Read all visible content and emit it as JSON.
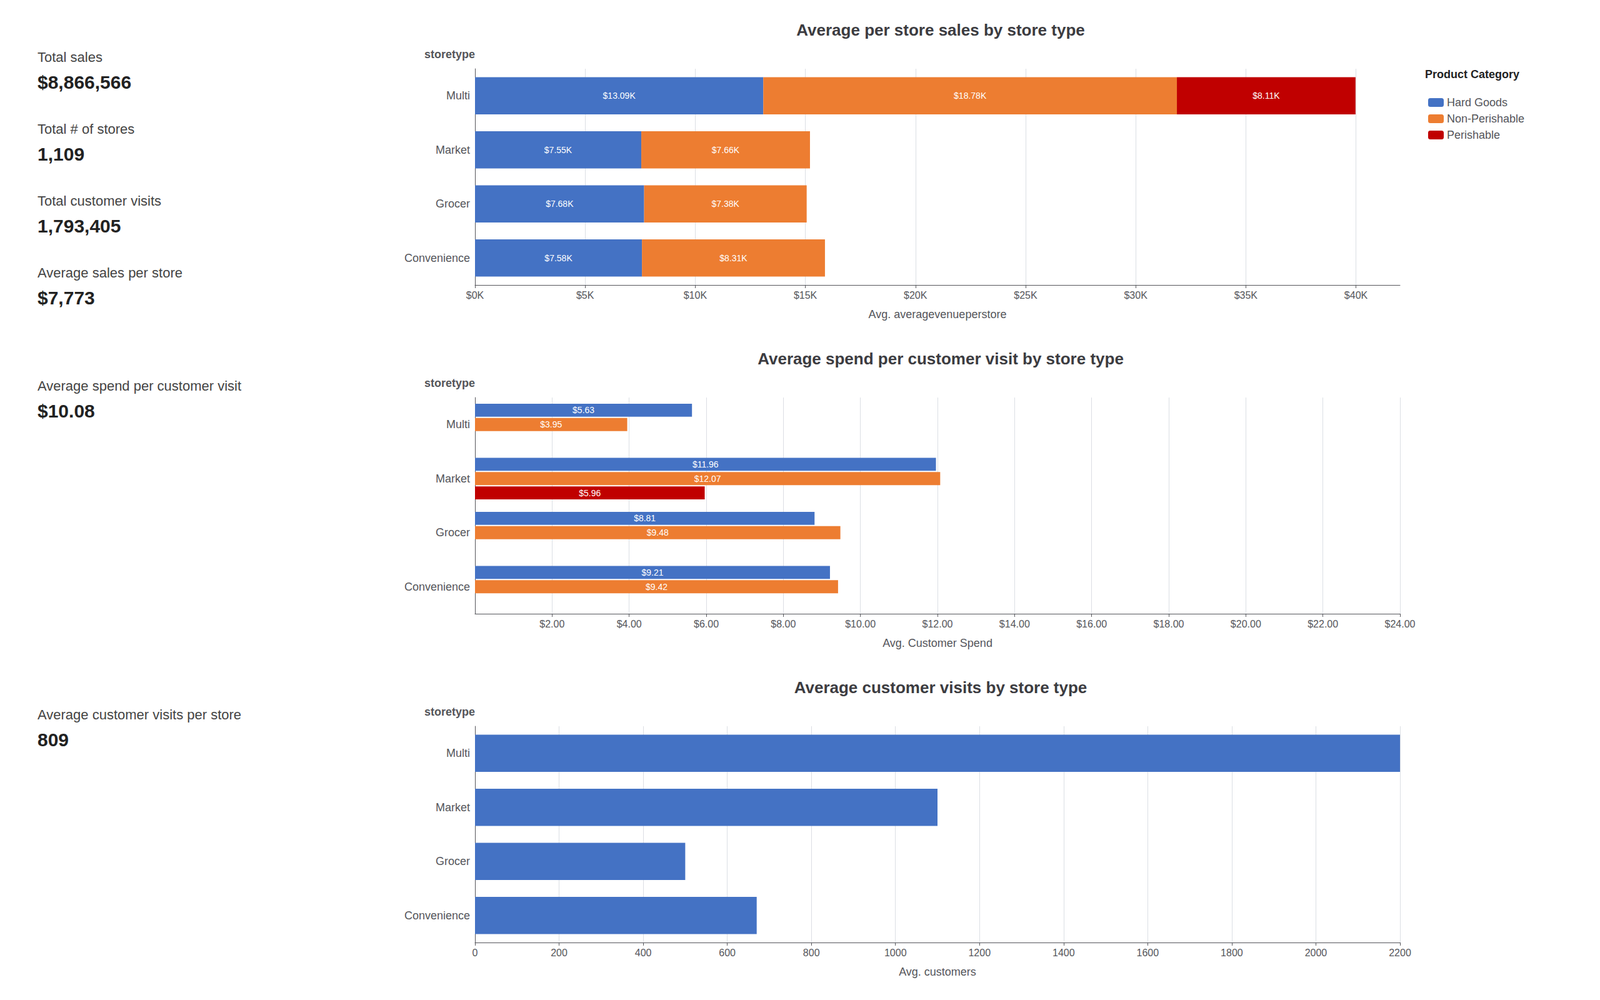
{
  "chart_data": [
    {
      "type": "bar",
      "orientation": "horizontal",
      "stacked": true,
      "title": "Average per store sales by store type",
      "xlabel": "Avg. averagevenueperstore",
      "ylabel": "storetype",
      "categories": [
        "Convenience",
        "Grocer",
        "Market",
        "Multi"
      ],
      "series": [
        {
          "name": "Hard Goods",
          "color": "#4472c4",
          "values": [
            7580,
            7680,
            7550,
            13090
          ],
          "value_labels": [
            "$7.58K",
            "$7.68K",
            "$7.55K",
            "$13.09K"
          ]
        },
        {
          "name": "Non-Perishable",
          "color": "#ed7d31",
          "values": [
            8310,
            7380,
            7660,
            18780
          ],
          "value_labels": [
            "$8.31K",
            "$7.38K",
            "$7.66K",
            "$18.78K"
          ]
        },
        {
          "name": "Perishable",
          "color": "#c00000",
          "values": [
            0,
            0,
            0,
            8110
          ],
          "value_labels": [
            null,
            null,
            null,
            "$8.11K"
          ]
        }
      ],
      "xlim": [
        0,
        42000
      ],
      "xticks": [
        {
          "value": 0,
          "label": "$0K"
        },
        {
          "value": 5000,
          "label": "$5K"
        },
        {
          "value": 10000,
          "label": "$10K"
        },
        {
          "value": 15000,
          "label": "$15K"
        },
        {
          "value": 20000,
          "label": "$20K"
        },
        {
          "value": 25000,
          "label": "$25K"
        },
        {
          "value": 30000,
          "label": "$30K"
        },
        {
          "value": 35000,
          "label": "$35K"
        },
        {
          "value": 40000,
          "label": "$40K"
        }
      ],
      "grid": true,
      "data_labels": true,
      "legend": "upper right",
      "legend_title": "Product Category",
      "annotations": [
        "Total sales",
        "$8,866,566",
        "Total # of stores",
        "1,109",
        "Total customer visits",
        "1,793,405",
        "Average sales per store",
        "$7,773"
      ]
    },
    {
      "type": "bar",
      "orientation": "horizontal",
      "title": "Average spend per customer visit by store type",
      "xlabel": "Avg. Customer Spend",
      "ylabel": "storetype",
      "categories": [
        "Convenience",
        "Grocer",
        "Market",
        "Multi"
      ],
      "series": [
        {
          "name": "Hard Goods",
          "color": "#4472c4",
          "values": [
            9.21,
            8.81,
            11.96,
            5.63
          ],
          "value_labels": [
            "$9.21",
            "$8.81",
            "$11.96",
            "$5.63"
          ]
        },
        {
          "name": "Non-Perishable",
          "color": "#ed7d31",
          "values": [
            9.42,
            9.48,
            12.07,
            3.95
          ],
          "value_labels": [
            "$9.42",
            "$9.48",
            "$12.07",
            "$3.95"
          ]
        },
        {
          "name": "Perishable",
          "color": "#c00000",
          "values": [
            0,
            0,
            5.96,
            0
          ],
          "value_labels": [
            null,
            null,
            "$5.96",
            null
          ]
        }
      ],
      "xlim": [
        0,
        24
      ],
      "xticks": [
        {
          "value": 2,
          "label": "$2.00"
        },
        {
          "value": 4,
          "label": "$4.00"
        },
        {
          "value": 6,
          "label": "$6.00"
        },
        {
          "value": 8,
          "label": "$8.00"
        },
        {
          "value": 10,
          "label": "$10.00"
        },
        {
          "value": 12,
          "label": "$12.00"
        },
        {
          "value": 14,
          "label": "$14.00"
        },
        {
          "value": 16,
          "label": "$16.00"
        },
        {
          "value": 18,
          "label": "$18.00"
        },
        {
          "value": 20,
          "label": "$20.00"
        },
        {
          "value": 22,
          "label": "$22.00"
        },
        {
          "value": 24,
          "label": "$24.00"
        }
      ],
      "grid": true,
      "data_labels": true,
      "annotations": [
        "Average spend per customer visit",
        "$10.08"
      ]
    },
    {
      "type": "bar",
      "orientation": "horizontal",
      "title": "Average customer visits by store type",
      "xlabel": "Avg. customers",
      "ylabel": "storetype",
      "categories": [
        "Convenience",
        "Grocer",
        "Market",
        "Multi"
      ],
      "values": [
        670,
        500,
        1100,
        2200
      ],
      "color": "#4472c4",
      "xlim": [
        0,
        2200
      ],
      "xticks": [
        0,
        200,
        400,
        600,
        800,
        1000,
        1200,
        1400,
        1600,
        1800,
        2000,
        2200
      ],
      "grid": true,
      "annotations": [
        "Average customer visits per store",
        "809"
      ]
    }
  ]
}
